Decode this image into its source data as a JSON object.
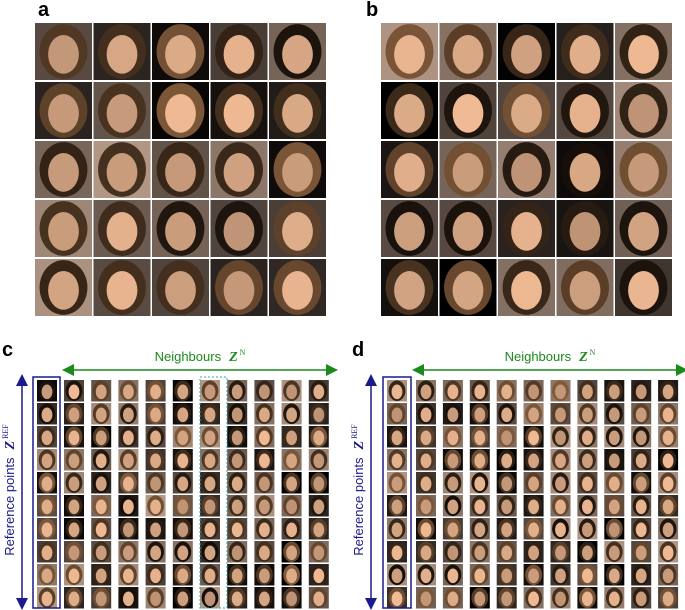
{
  "panels": [
    {
      "label": "a"
    },
    {
      "label": "b"
    },
    {
      "label": "c",
      "top_axis": {
        "text": "Neighbours",
        "symbol": "Z",
        "superscript": "N"
      },
      "side_axis": {
        "text": "Reference points",
        "symbol": "Z",
        "superscript": "REF"
      }
    },
    {
      "label": "d",
      "top_axis": {
        "text": "Neighbours",
        "symbol": "Z",
        "superscript": "N"
      },
      "side_axis": {
        "text": "Reference points",
        "symbol": "Z",
        "superscript": "REF"
      }
    }
  ]
}
